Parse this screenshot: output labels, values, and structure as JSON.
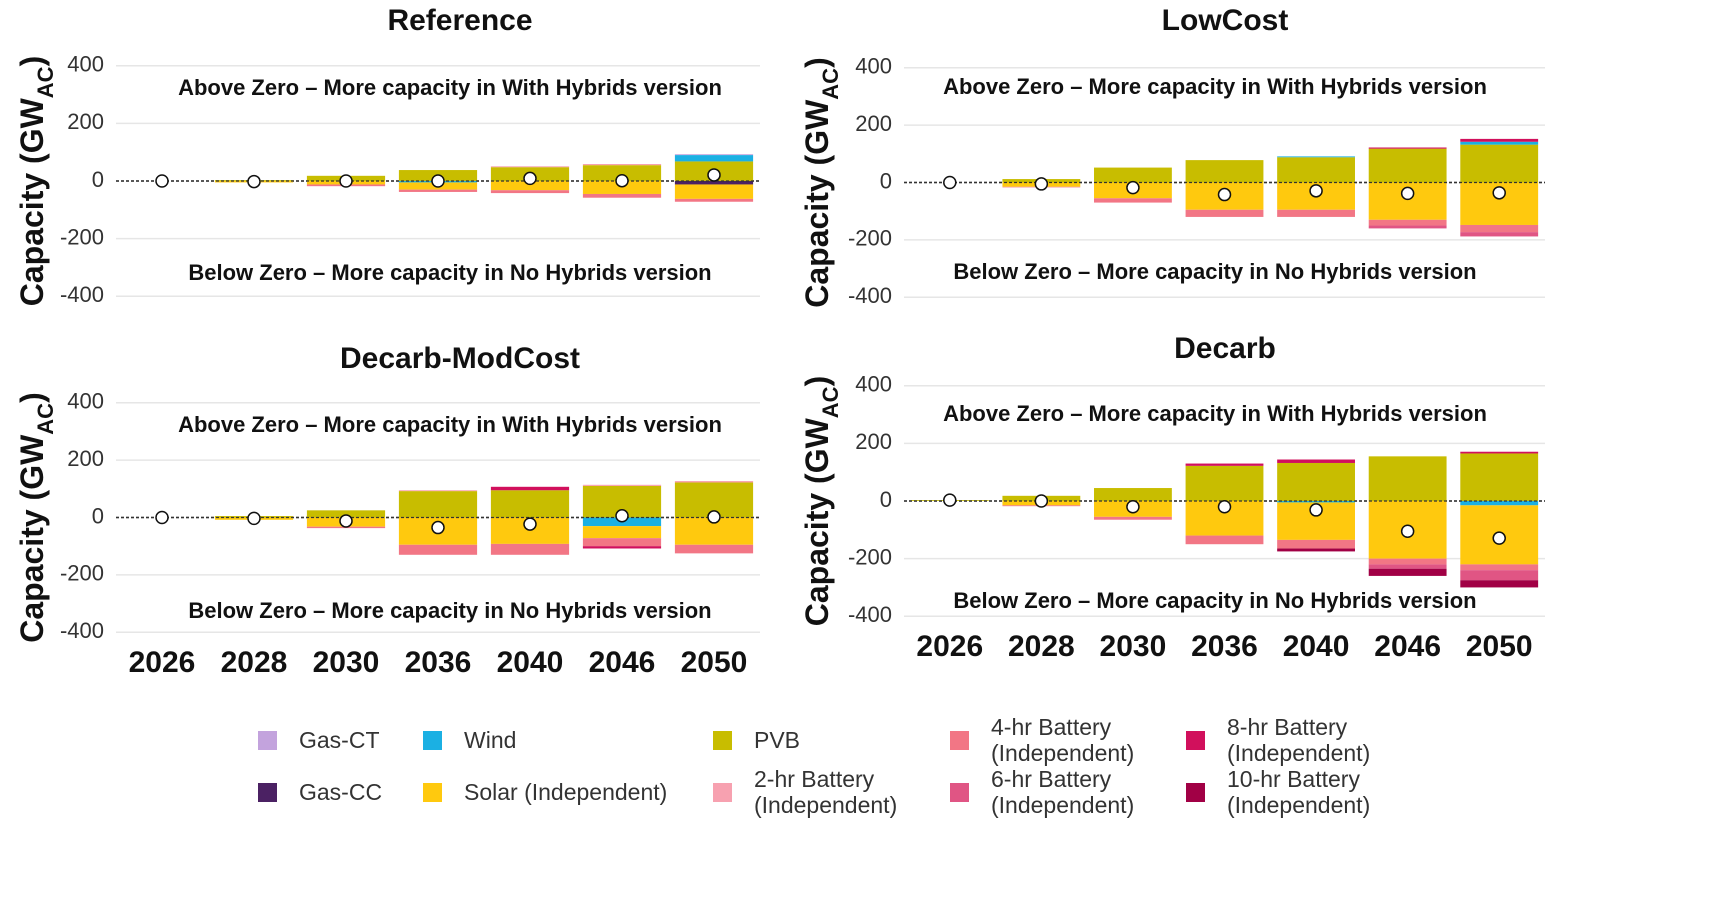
{
  "chart_data": [
    {
      "type": "bar",
      "stacked": true,
      "title": "Reference",
      "ylabel": [
        "Capacity (GW",
        "AC",
        ")"
      ],
      "annotations": [
        "Above Zero – More capacity in With Hybrids version",
        "Below Zero – More capacity in No Hybrids version"
      ],
      "categories": [
        null,
        null,
        null,
        null,
        null,
        null,
        null
      ],
      "ylim": [
        -420,
        420
      ],
      "yticks": [
        -400,
        -200,
        0,
        200,
        400
      ],
      "grid": true,
      "series": [
        {
          "name": "Gas-CC",
          "color": "#4b2163",
          "values": [
            0,
            0,
            0,
            0,
            0,
            0,
            -12
          ]
        },
        {
          "name": "PVB",
          "color": "#c8bd00",
          "values": [
            0,
            3,
            18,
            38,
            48,
            55,
            68
          ]
        },
        {
          "name": "Wind",
          "color": "#1bb0e3",
          "values": [
            0,
            0,
            0,
            -5,
            0,
            0,
            22
          ]
        },
        {
          "name": "Solar (Independent)",
          "color": "#ffc90e",
          "values": [
            0,
            -5,
            -12,
            -25,
            -32,
            -45,
            -50
          ]
        },
        {
          "name": "2-hr Battery (Independent)",
          "color": "#f7a1b0",
          "values": [
            0,
            0,
            0,
            0,
            3,
            4,
            0
          ]
        },
        {
          "name": "4-hr Battery (Independent)",
          "color": "#f27685",
          "values": [
            0,
            0,
            -6,
            -8,
            -10,
            -13,
            -10
          ]
        },
        {
          "name": "6-hr Battery (Independent)",
          "color": "#e05584",
          "values": [
            0,
            0,
            0,
            0,
            0,
            0,
            0
          ]
        },
        {
          "name": "8-hr Battery (Independent)",
          "color": "#d1105c",
          "values": [
            0,
            0,
            0,
            0,
            0,
            0,
            0
          ]
        },
        {
          "name": "10-hr Battery (Independent)",
          "color": "#a10045",
          "values": [
            0,
            0,
            0,
            0,
            0,
            0,
            0
          ]
        },
        {
          "name": "Gas-CT",
          "color": "#c3a3dd",
          "values": [
            0,
            0,
            0,
            0,
            0,
            0,
            3
          ]
        }
      ],
      "net_values": [
        0,
        -2,
        0,
        0,
        9,
        1,
        21
      ]
    },
    {
      "type": "bar",
      "stacked": true,
      "title": "LowCost",
      "ylabel": [
        "Capacity (GW",
        "AC",
        ")"
      ],
      "annotations": [
        "Above Zero – More capacity in With Hybrids version",
        "Below Zero – More capacity in No Hybrids version"
      ],
      "categories": [
        null,
        null,
        null,
        null,
        null,
        null,
        null
      ],
      "ylim": [
        -420,
        420
      ],
      "yticks": [
        -400,
        -200,
        0,
        200,
        400
      ],
      "grid": true,
      "series": [
        {
          "name": "Gas-CC",
          "color": "#4b2163",
          "values": [
            0,
            0,
            0,
            0,
            0,
            0,
            0
          ]
        },
        {
          "name": "PVB",
          "color": "#c8bd00",
          "values": [
            0,
            12,
            52,
            78,
            88,
            118,
            132
          ]
        },
        {
          "name": "Wind",
          "color": "#1bb0e3",
          "values": [
            0,
            0,
            0,
            0,
            3,
            0,
            10
          ]
        },
        {
          "name": "Solar (Independent)",
          "color": "#ffc90e",
          "values": [
            0,
            -15,
            -55,
            -95,
            -95,
            -130,
            -148
          ]
        },
        {
          "name": "2-hr Battery (Independent)",
          "color": "#f7a1b0",
          "values": [
            0,
            0,
            0,
            0,
            0,
            0,
            0
          ]
        },
        {
          "name": "4-hr Battery (Independent)",
          "color": "#f27685",
          "values": [
            0,
            -2,
            -15,
            -25,
            -25,
            -20,
            -25
          ]
        },
        {
          "name": "6-hr Battery (Independent)",
          "color": "#e05584",
          "values": [
            0,
            0,
            0,
            0,
            0,
            -10,
            -15
          ]
        },
        {
          "name": "8-hr Battery (Independent)",
          "color": "#d1105c",
          "values": [
            0,
            0,
            0,
            0,
            0,
            4,
            10
          ]
        },
        {
          "name": "10-hr Battery (Independent)",
          "color": "#a10045",
          "values": [
            0,
            0,
            0,
            0,
            0,
            0,
            0
          ]
        },
        {
          "name": "Gas-CT",
          "color": "#c3a3dd",
          "values": [
            0,
            0,
            0,
            0,
            0,
            0,
            0
          ]
        }
      ],
      "net_values": [
        0,
        -5,
        -18,
        -42,
        -29,
        -38,
        -36
      ]
    },
    {
      "type": "bar",
      "stacked": true,
      "title": "Decarb-ModCost",
      "ylabel": [
        "Capacity (GW",
        "AC",
        ")"
      ],
      "annotations": [
        "Above Zero – More capacity in With Hybrids version",
        "Below Zero – More capacity in No Hybrids version"
      ],
      "categories": [
        "2026",
        "2028",
        "2030",
        "2036",
        "2040",
        "2046",
        "2050"
      ],
      "ylim": [
        -420,
        420
      ],
      "yticks": [
        -400,
        -200,
        0,
        200,
        400
      ],
      "grid": true,
      "series": [
        {
          "name": "Gas-CC",
          "color": "#4b2163",
          "values": [
            0,
            0,
            0,
            0,
            0,
            0,
            0
          ]
        },
        {
          "name": "PVB",
          "color": "#c8bd00",
          "values": [
            0,
            5,
            25,
            92,
            95,
            110,
            122
          ]
        },
        {
          "name": "Wind",
          "color": "#1bb0e3",
          "values": [
            0,
            0,
            0,
            0,
            0,
            -30,
            0
          ]
        },
        {
          "name": "Solar (Independent)",
          "color": "#ffc90e",
          "values": [
            0,
            -8,
            -32,
            -95,
            -92,
            -42,
            -95
          ]
        },
        {
          "name": "2-hr Battery (Independent)",
          "color": "#f7a1b0",
          "values": [
            0,
            0,
            0,
            3,
            0,
            4,
            5
          ]
        },
        {
          "name": "4-hr Battery (Independent)",
          "color": "#f27685",
          "values": [
            0,
            0,
            -5,
            -35,
            -38,
            -28,
            -30
          ]
        },
        {
          "name": "6-hr Battery (Independent)",
          "color": "#e05584",
          "values": [
            0,
            0,
            0,
            0,
            0,
            0,
            0
          ]
        },
        {
          "name": "8-hr Battery (Independent)",
          "color": "#d1105c",
          "values": [
            0,
            0,
            0,
            0,
            12,
            -8,
            0
          ]
        },
        {
          "name": "10-hr Battery (Independent)",
          "color": "#a10045",
          "values": [
            0,
            0,
            0,
            0,
            0,
            0,
            0
          ]
        },
        {
          "name": "Gas-CT",
          "color": "#c3a3dd",
          "values": [
            0,
            0,
            0,
            0,
            0,
            0,
            0
          ]
        }
      ],
      "net_values": [
        0,
        -3,
        -12,
        -35,
        -23,
        6,
        2
      ]
    },
    {
      "type": "bar",
      "stacked": true,
      "title": "Decarb",
      "ylabel": [
        "Capacity (GW",
        "AC",
        ")"
      ],
      "annotations": [
        "Above Zero – More capacity in With Hybrids version",
        "Below Zero – More capacity in No Hybrids version"
      ],
      "categories": [
        "2026",
        "2028",
        "2030",
        "2036",
        "2040",
        "2046",
        "2050"
      ],
      "ylim": [
        -420,
        420
      ],
      "yticks": [
        -400,
        -200,
        0,
        200,
        400
      ],
      "grid": true,
      "series": [
        {
          "name": "Gas-CC",
          "color": "#4b2163",
          "values": [
            0,
            0,
            0,
            0,
            0,
            0,
            0
          ]
        },
        {
          "name": "PVB",
          "color": "#c8bd00",
          "values": [
            3,
            18,
            45,
            122,
            132,
            155,
            165
          ]
        },
        {
          "name": "Wind",
          "color": "#1bb0e3",
          "values": [
            0,
            0,
            0,
            0,
            -5,
            0,
            -15
          ]
        },
        {
          "name": "Solar (Independent)",
          "color": "#ffc90e",
          "values": [
            0,
            -15,
            -55,
            -120,
            -130,
            -200,
            -205
          ]
        },
        {
          "name": "2-hr Battery (Independent)",
          "color": "#f7a1b0",
          "values": [
            0,
            0,
            0,
            0,
            0,
            0,
            0
          ]
        },
        {
          "name": "4-hr Battery (Independent)",
          "color": "#f27685",
          "values": [
            0,
            -3,
            -10,
            -30,
            -30,
            -20,
            -20
          ]
        },
        {
          "name": "6-hr Battery (Independent)",
          "color": "#e05584",
          "values": [
            0,
            0,
            0,
            0,
            0,
            -15,
            -35
          ]
        },
        {
          "name": "8-hr Battery (Independent)",
          "color": "#d1105c",
          "values": [
            0,
            0,
            0,
            8,
            12,
            0,
            6
          ]
        },
        {
          "name": "10-hr Battery (Independent)",
          "color": "#a10045",
          "values": [
            0,
            0,
            0,
            0,
            -10,
            -25,
            -25
          ]
        },
        {
          "name": "Gas-CT",
          "color": "#c3a3dd",
          "values": [
            0,
            0,
            0,
            0,
            0,
            0,
            0
          ]
        }
      ],
      "net_values": [
        3,
        0,
        -20,
        -20,
        -31,
        -105,
        -129
      ]
    }
  ]
}
